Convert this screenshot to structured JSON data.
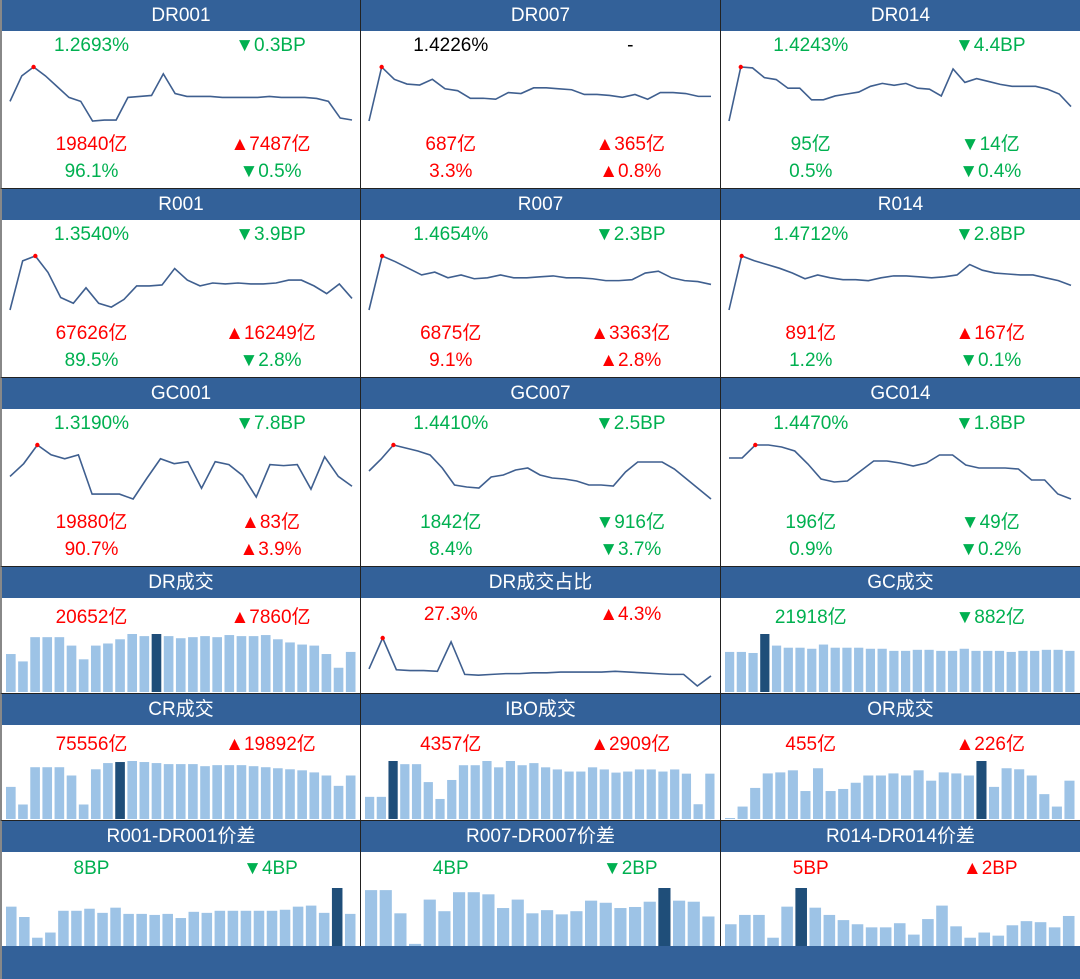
{
  "colors": {
    "header": "#336199",
    "green": "#00b050",
    "red": "#ff0000",
    "line": "#3f5f8f",
    "bar": "#9dc3e6",
    "bar_highlight": "#1f4e79"
  },
  "panels": [
    {
      "title": "DR001",
      "type": "rate",
      "rate": {
        "text": "1.2693%",
        "color": "green"
      },
      "rate_change": {
        "text": "▼0.3BP",
        "color": "green"
      },
      "volume": {
        "text": "19840亿",
        "color": "red"
      },
      "volume_change": {
        "text": "▲7487亿",
        "color": "red"
      },
      "share": {
        "text": "96.1%",
        "color": "green"
      },
      "share_change": {
        "text": "▼0.5%",
        "color": "green"
      },
      "chart": {
        "kind": "line",
        "values": [
          28,
          54,
          63,
          54,
          43,
          32,
          28,
          8,
          9,
          9,
          32,
          33,
          34,
          56,
          36,
          33,
          33,
          33,
          32,
          32,
          32,
          32,
          33,
          32,
          32,
          32,
          31,
          28,
          11,
          9
        ]
      }
    },
    {
      "title": "DR007",
      "type": "rate",
      "rate": {
        "text": "1.4226%",
        "color": "black"
      },
      "rate_change": {
        "text": "-",
        "color": "black"
      },
      "volume": {
        "text": "687亿",
        "color": "red"
      },
      "volume_change": {
        "text": "▲365亿",
        "color": "red"
      },
      "share": {
        "text": "3.3%",
        "color": "red"
      },
      "share_change": {
        "text": "▲0.8%",
        "color": "red"
      },
      "chart": {
        "kind": "line",
        "values": [
          6,
          63,
          50,
          45,
          44,
          50,
          40,
          38,
          30,
          30,
          29,
          36,
          35,
          41,
          41,
          40,
          39,
          34,
          34,
          33,
          31,
          34,
          29,
          36,
          36,
          35,
          32,
          32
        ]
      }
    },
    {
      "title": "DR014",
      "type": "rate",
      "rate": {
        "text": "1.4243%",
        "color": "green"
      },
      "rate_change": {
        "text": "▼4.4BP",
        "color": "green"
      },
      "volume": {
        "text": "95亿",
        "color": "green"
      },
      "volume_change": {
        "text": "▼14亿",
        "color": "green"
      },
      "share": {
        "text": "0.5%",
        "color": "green"
      },
      "share_change": {
        "text": "▼0.4%",
        "color": "green"
      },
      "chart": {
        "kind": "line",
        "values": [
          6,
          62,
          61,
          51,
          49,
          40,
          40,
          28,
          28,
          32,
          34,
          36,
          42,
          45,
          43,
          45,
          40,
          39,
          32,
          60,
          46,
          50,
          47,
          44,
          42,
          42,
          42,
          39,
          34,
          21
        ]
      }
    },
    {
      "title": "R001",
      "type": "rate",
      "rate": {
        "text": "1.3540%",
        "color": "green"
      },
      "rate_change": {
        "text": "▼3.9BP",
        "color": "green"
      },
      "volume": {
        "text": "67626亿",
        "color": "red"
      },
      "volume_change": {
        "text": "▲16249亿",
        "color": "red"
      },
      "share": {
        "text": "89.5%",
        "color": "green"
      },
      "share_change": {
        "text": "▼2.8%",
        "color": "green"
      },
      "chart": {
        "kind": "line",
        "values": [
          2,
          53,
          58,
          41,
          15,
          9,
          25,
          9,
          5,
          13,
          27,
          27,
          28,
          45,
          33,
          27,
          30,
          29,
          30,
          29,
          29,
          30,
          33,
          33,
          27,
          19,
          29,
          14
        ]
      }
    },
    {
      "title": "R007",
      "type": "rate",
      "rate": {
        "text": "1.4654%",
        "color": "green"
      },
      "rate_change": {
        "text": "▼2.3BP",
        "color": "green"
      },
      "volume": {
        "text": "6875亿",
        "color": "red"
      },
      "volume_change": {
        "text": "▲3363亿",
        "color": "red"
      },
      "share": {
        "text": "9.1%",
        "color": "red"
      },
      "share_change": {
        "text": "▲2.8%",
        "color": "red"
      },
      "chart": {
        "kind": "line",
        "values": [
          1,
          58,
          52,
          45,
          38,
          41,
          35,
          38,
          34,
          35,
          38,
          35,
          35,
          36,
          37,
          35,
          35,
          34,
          32,
          32,
          33,
          40,
          42,
          35,
          32,
          31,
          28
        ]
      }
    },
    {
      "title": "R014",
      "type": "rate",
      "rate": {
        "text": "1.4712%",
        "color": "green"
      },
      "rate_change": {
        "text": "▼2.8BP",
        "color": "green"
      },
      "volume": {
        "text": "891亿",
        "color": "red"
      },
      "volume_change": {
        "text": "▲167亿",
        "color": "red"
      },
      "share": {
        "text": "1.2%",
        "color": "green"
      },
      "share_change": {
        "text": "▼0.1%",
        "color": "green"
      },
      "chart": {
        "kind": "line",
        "values": [
          1,
          58,
          53,
          49,
          45,
          40,
          34,
          38,
          35,
          33,
          33,
          32,
          35,
          37,
          37,
          36,
          35,
          36,
          38,
          49,
          43,
          40,
          39,
          38,
          38,
          35,
          32,
          27
        ]
      }
    },
    {
      "title": "GC001",
      "type": "rate",
      "rate": {
        "text": "1.3190%",
        "color": "green"
      },
      "rate_change": {
        "text": "▼7.8BP",
        "color": "green"
      },
      "volume": {
        "text": "19880亿",
        "color": "red"
      },
      "volume_change": {
        "text": "▲83亿",
        "color": "red"
      },
      "share": {
        "text": "90.7%",
        "color": "red"
      },
      "share_change": {
        "text": "▲3.9%",
        "color": "red"
      },
      "chart": {
        "kind": "line",
        "values": [
          22,
          35,
          54,
          44,
          40,
          44,
          4,
          4,
          4,
          -1,
          20,
          40,
          35,
          37,
          10,
          37,
          34,
          23,
          1,
          34,
          33,
          34,
          9,
          42,
          22,
          12
        ]
      }
    },
    {
      "title": "GC007",
      "type": "rate",
      "rate": {
        "text": "1.4410%",
        "color": "green"
      },
      "rate_change": {
        "text": "▼2.5BP",
        "color": "green"
      },
      "volume": {
        "text": "1842亿",
        "color": "green"
      },
      "volume_change": {
        "text": "▼916亿",
        "color": "green"
      },
      "share": {
        "text": "8.4%",
        "color": "green"
      },
      "share_change": {
        "text": "▼3.7%",
        "color": "green"
      },
      "chart": {
        "kind": "line",
        "values": [
          28,
          40,
          54,
          51,
          48,
          44,
          31,
          14,
          12,
          11,
          22,
          24,
          29,
          31,
          24,
          21,
          20,
          18,
          14,
          14,
          13,
          27,
          37,
          37,
          37,
          30,
          20,
          10,
          0
        ]
      }
    },
    {
      "title": "GC014",
      "type": "rate",
      "rate": {
        "text": "1.4470%",
        "color": "green"
      },
      "rate_change": {
        "text": "▼1.8BP",
        "color": "green"
      },
      "volume": {
        "text": "196亿",
        "color": "green"
      },
      "volume_change": {
        "text": "▼49亿",
        "color": "green"
      },
      "share": {
        "text": "0.9%",
        "color": "green"
      },
      "share_change": {
        "text": "▼0.2%",
        "color": "green"
      },
      "chart": {
        "kind": "line",
        "values": [
          41,
          41,
          54,
          54,
          52,
          48,
          35,
          20,
          17,
          18,
          28,
          38,
          38,
          36,
          33,
          36,
          44,
          44,
          34,
          31,
          31,
          31,
          30,
          19,
          19,
          5,
          0
        ]
      }
    },
    {
      "title": "DR成交",
      "type": "volume",
      "value": {
        "text": "20652亿",
        "color": "red"
      },
      "change": {
        "text": "▲7860亿",
        "color": "red"
      },
      "chart": {
        "kind": "bar",
        "highlight": 12,
        "values": [
          36,
          29,
          52,
          52,
          52,
          44,
          31,
          44,
          46,
          50,
          55,
          53,
          55,
          53,
          51,
          52,
          53,
          52,
          54,
          53,
          53,
          54,
          50,
          47,
          45,
          44,
          36,
          23,
          38
        ]
      }
    },
    {
      "title": "DR成交占比",
      "type": "volume",
      "value": {
        "text": "27.3%",
        "color": "red"
      },
      "change": {
        "text": "▲4.3%",
        "color": "red"
      },
      "chart": {
        "kind": "line",
        "values": [
          14,
          54,
          13,
          12,
          12,
          11,
          49,
          7,
          6,
          7,
          8,
          8,
          9,
          9,
          10,
          10,
          10,
          10,
          11,
          10,
          9,
          8,
          7,
          7,
          -8,
          5
        ]
      }
    },
    {
      "title": "GC成交",
      "type": "volume",
      "value": {
        "text": "21918亿",
        "color": "green"
      },
      "change": {
        "text": "▼882亿",
        "color": "green"
      },
      "chart": {
        "kind": "bar",
        "highlight": 3,
        "values": [
          38,
          38,
          37,
          55,
          44,
          42,
          42,
          41,
          45,
          42,
          42,
          42,
          41,
          41,
          39,
          39,
          40,
          40,
          39,
          39,
          41,
          39,
          39,
          39,
          38,
          39,
          39,
          40,
          40,
          39
        ]
      }
    },
    {
      "title": "CR成交",
      "type": "volume",
      "value": {
        "text": "75556亿",
        "color": "red"
      },
      "change": {
        "text": "▲19892亿",
        "color": "red"
      },
      "chart": {
        "kind": "bar",
        "highlight": 9,
        "values": [
          31,
          14,
          50,
          50,
          50,
          42,
          14,
          48,
          54,
          55,
          56,
          55,
          54,
          53,
          53,
          53,
          51,
          52,
          52,
          52,
          51,
          50,
          49,
          48,
          47,
          45,
          42,
          32,
          42
        ]
      }
    },
    {
      "title": "IBO成交",
      "type": "volume",
      "value": {
        "text": "4357亿",
        "color": "red"
      },
      "change": {
        "text": "▲2909亿",
        "color": "red"
      },
      "chart": {
        "kind": "bar",
        "highlight": 2,
        "values": [
          21,
          21,
          55,
          52,
          52,
          35,
          19,
          37,
          51,
          51,
          55,
          49,
          55,
          51,
          53,
          49,
          47,
          45,
          45,
          49,
          47,
          44,
          45,
          47,
          47,
          45,
          47,
          43,
          14,
          43
        ]
      }
    },
    {
      "title": "OR成交",
      "type": "volume",
      "value": {
        "text": "455亿",
        "color": "red"
      },
      "change": {
        "text": "▲226亿",
        "color": "red"
      },
      "chart": {
        "kind": "bar",
        "highlight": 20,
        "values": [
          0,
          12,
          30,
          44,
          45,
          47,
          27,
          49,
          27,
          29,
          35,
          42,
          42,
          44,
          42,
          47,
          37,
          45,
          44,
          42,
          56,
          31,
          49,
          48,
          42,
          24,
          12,
          37
        ]
      }
    },
    {
      "title": "R001-DR001价差",
      "type": "volume",
      "value": {
        "text": "8BP",
        "color": "green"
      },
      "change": {
        "text": "▼4BP",
        "color": "green"
      },
      "chart": {
        "kind": "bar",
        "highlight": 25,
        "values": [
          38,
          28,
          8,
          13,
          34,
          34,
          36,
          32,
          37,
          31,
          31,
          30,
          31,
          27,
          33,
          32,
          34,
          34,
          34,
          34,
          34,
          35,
          38,
          39,
          32,
          56,
          31
        ]
      }
    },
    {
      "title": "R007-DR007价差",
      "type": "volume",
      "value": {
        "text": "4BP",
        "color": "green"
      },
      "change": {
        "text": "▼2BP",
        "color": "green"
      },
      "chart": {
        "kind": "bar",
        "highlight": 20,
        "values": [
          53,
          53,
          31,
          2,
          44,
          33,
          51,
          51,
          49,
          36,
          44,
          31,
          34,
          30,
          33,
          43,
          41,
          36,
          37,
          42,
          55,
          43,
          42,
          28
        ]
      }
    },
    {
      "title": "R014-DR014价差",
      "type": "volume",
      "value": {
        "text": "5BP",
        "color": "red"
      },
      "change": {
        "text": "▲2BP",
        "color": "red"
      },
      "chart": {
        "kind": "bar",
        "highlight": 5,
        "values": [
          21,
          30,
          30,
          8,
          38,
          56,
          37,
          30,
          25,
          21,
          18,
          18,
          22,
          11,
          26,
          39,
          19,
          8,
          13,
          10,
          20,
          24,
          23,
          18,
          29
        ]
      }
    }
  ]
}
